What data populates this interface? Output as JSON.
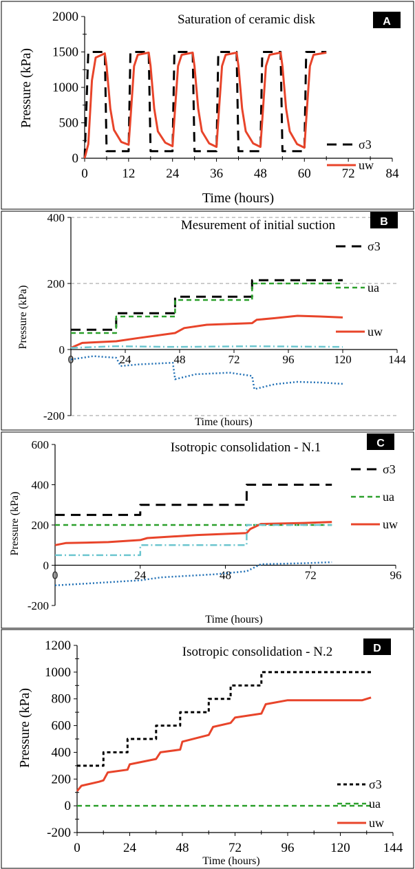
{
  "colors": {
    "sigma3": "#000000",
    "ua": "#2ca02c",
    "uw": "#e8442a",
    "ua_minus_uw": "#6cc6cf",
    "suction": "#1f6fb5",
    "grid": "#9a9a9a",
    "badge_bg": "#000000",
    "badge_text": "#ffffff"
  },
  "chart_data": [
    {
      "type": "line",
      "panel_label": "A",
      "title": "Saturation of ceramic disk",
      "xlabel": "Time (hours)",
      "ylabel": "Pressure (kPa)",
      "xlim": [
        0,
        84
      ],
      "ylim": [
        0,
        2000
      ],
      "xticks": [
        0,
        12,
        24,
        36,
        48,
        60,
        72,
        84
      ],
      "yticks": [
        0,
        500,
        1000,
        1500,
        2000
      ],
      "grid": false,
      "legend_placement": "right",
      "series": [
        {
          "name": "σ3",
          "style": "dashed-black",
          "points": [
            [
              0,
              0
            ],
            [
              1,
              1500
            ],
            [
              5.5,
              1500
            ],
            [
              6,
              100
            ],
            [
              12,
              100
            ],
            [
              12.5,
              1500
            ],
            [
              17.5,
              1500
            ],
            [
              18,
              100
            ],
            [
              24,
              100
            ],
            [
              24.5,
              1500
            ],
            [
              29.5,
              1500
            ],
            [
              30,
              100
            ],
            [
              36,
              100
            ],
            [
              36.5,
              1500
            ],
            [
              41.5,
              1500
            ],
            [
              42,
              100
            ],
            [
              48,
              100
            ],
            [
              48.5,
              1500
            ],
            [
              53.5,
              1500
            ],
            [
              54,
              100
            ],
            [
              60,
              100
            ],
            [
              60.5,
              1500
            ],
            [
              66,
              1500
            ]
          ]
        },
        {
          "name": "uw",
          "style": "solid-red",
          "points": [
            [
              0,
              0
            ],
            [
              1,
              200
            ],
            [
              2,
              1100
            ],
            [
              3,
              1420
            ],
            [
              5.5,
              1480
            ],
            [
              6,
              1300
            ],
            [
              7,
              700
            ],
            [
              8,
              400
            ],
            [
              10,
              230
            ],
            [
              12,
              190
            ],
            [
              12.7,
              700
            ],
            [
              13.5,
              1300
            ],
            [
              14.5,
              1460
            ],
            [
              17.5,
              1490
            ],
            [
              18,
              1300
            ],
            [
              19,
              700
            ],
            [
              20,
              380
            ],
            [
              22,
              220
            ],
            [
              24,
              170
            ],
            [
              24.7,
              700
            ],
            [
              25.5,
              1300
            ],
            [
              26.5,
              1460
            ],
            [
              29.5,
              1490
            ],
            [
              30,
              1300
            ],
            [
              31,
              700
            ],
            [
              32,
              380
            ],
            [
              34,
              210
            ],
            [
              36,
              160
            ],
            [
              36.7,
              700
            ],
            [
              37.5,
              1300
            ],
            [
              38.5,
              1460
            ],
            [
              41.5,
              1490
            ],
            [
              42,
              1300
            ],
            [
              43,
              700
            ],
            [
              44,
              380
            ],
            [
              46,
              210
            ],
            [
              48,
              160
            ],
            [
              48.7,
              700
            ],
            [
              49.5,
              1300
            ],
            [
              50.5,
              1460
            ],
            [
              53.5,
              1490
            ],
            [
              54,
              1300
            ],
            [
              55,
              700
            ],
            [
              56,
              380
            ],
            [
              58,
              200
            ],
            [
              60,
              150
            ],
            [
              60.7,
              700
            ],
            [
              61.5,
              1300
            ],
            [
              62.5,
              1460
            ],
            [
              66,
              1490
            ]
          ]
        }
      ]
    },
    {
      "type": "line",
      "panel_label": "B",
      "title": "Mesurement of initial suction",
      "xlabel": "Time (hours)",
      "ylabel": "Pressure (kPa)",
      "xlim": [
        0,
        144
      ],
      "ylim": [
        -200,
        400
      ],
      "xticks": [
        0,
        24,
        48,
        72,
        96,
        120,
        144
      ],
      "yticks": [
        -200,
        0,
        200,
        400
      ],
      "grid": true,
      "legend_placement": "right",
      "series": [
        {
          "name": "σ3",
          "style": "dashed-black",
          "points": [
            [
              0,
              60
            ],
            [
              20,
              60
            ],
            [
              20,
              110
            ],
            [
              46,
              110
            ],
            [
              46,
              160
            ],
            [
              80,
              160
            ],
            [
              80,
              210
            ],
            [
              120,
              210
            ]
          ]
        },
        {
          "name": "ua",
          "style": "dashed-green",
          "points": [
            [
              0,
              50
            ],
            [
              20,
              50
            ],
            [
              20,
              100
            ],
            [
              46,
              100
            ],
            [
              46,
              150
            ],
            [
              80,
              150
            ],
            [
              80,
              200
            ],
            [
              120,
              200
            ]
          ]
        },
        {
          "name": "uw",
          "style": "solid-red",
          "points": [
            [
              0,
              5
            ],
            [
              5,
              20
            ],
            [
              20,
              25
            ],
            [
              30,
              35
            ],
            [
              46,
              50
            ],
            [
              50,
              65
            ],
            [
              60,
              75
            ],
            [
              80,
              80
            ],
            [
              82,
              90
            ],
            [
              90,
              95
            ],
            [
              100,
              102
            ],
            [
              110,
              100
            ],
            [
              120,
              97
            ]
          ]
        },
        {
          "style": "dashdot-cyan",
          "points": [
            [
              0,
              5
            ],
            [
              20,
              10
            ],
            [
              46,
              8
            ],
            [
              80,
              10
            ],
            [
              120,
              8
            ]
          ]
        },
        {
          "style": "dotted-blue",
          "points": [
            [
              0,
              -30
            ],
            [
              10,
              -20
            ],
            [
              20,
              -25
            ],
            [
              22,
              -50
            ],
            [
              30,
              -45
            ],
            [
              45,
              -40
            ],
            [
              46,
              -90
            ],
            [
              55,
              -75
            ],
            [
              70,
              -70
            ],
            [
              80,
              -80
            ],
            [
              81,
              -120
            ],
            [
              90,
              -105
            ],
            [
              100,
              -98
            ],
            [
              110,
              -100
            ],
            [
              120,
              -104
            ]
          ]
        }
      ]
    },
    {
      "type": "line",
      "panel_label": "C",
      "title": "Isotropic consolidation - N.1",
      "xlabel": "Time (hours)",
      "ylabel": "Pressure (kPa)",
      "xlim": [
        0,
        96
      ],
      "ylim": [
        -200,
        600
      ],
      "xticks": [
        0,
        24,
        48,
        72,
        96
      ],
      "yticks": [
        -200,
        0,
        200,
        400,
        600
      ],
      "grid": false,
      "legend_placement": "right",
      "series": [
        {
          "name": "σ3",
          "style": "dashed-black",
          "points": [
            [
              0,
              250
            ],
            [
              24,
              250
            ],
            [
              24,
              300
            ],
            [
              54,
              300
            ],
            [
              54,
              400
            ],
            [
              78,
              400
            ]
          ]
        },
        {
          "name": "ua",
          "style": "dashed-green",
          "points": [
            [
              0,
              200
            ],
            [
              78,
              200
            ]
          ]
        },
        {
          "name": "uw",
          "style": "solid-red",
          "points": [
            [
              0,
              100
            ],
            [
              3,
              110
            ],
            [
              15,
              115
            ],
            [
              24,
              125
            ],
            [
              26,
              135
            ],
            [
              40,
              150
            ],
            [
              54,
              160
            ],
            [
              55,
              180
            ],
            [
              58,
              205
            ],
            [
              70,
              210
            ],
            [
              78,
              215
            ]
          ]
        },
        {
          "style": "dashdot-cyan",
          "points": [
            [
              0,
              50
            ],
            [
              24,
              50
            ],
            [
              24,
              100
            ],
            [
              54,
              100
            ],
            [
              54,
              200
            ],
            [
              78,
              200
            ]
          ]
        },
        {
          "style": "dotted-blue",
          "points": [
            [
              0,
              -100
            ],
            [
              10,
              -90
            ],
            [
              24,
              -75
            ],
            [
              30,
              -60
            ],
            [
              45,
              -45
            ],
            [
              54,
              -30
            ],
            [
              58,
              5
            ],
            [
              70,
              10
            ],
            [
              78,
              15
            ]
          ]
        }
      ]
    },
    {
      "type": "line",
      "panel_label": "D",
      "title": "Isotropic consolidation - N.2",
      "xlabel": "Time (hours)",
      "ylabel": "Pressure (kPa)",
      "xlim": [
        0,
        144
      ],
      "ylim": [
        -200,
        1200
      ],
      "xticks": [
        0,
        24,
        48,
        72,
        96,
        120,
        144
      ],
      "yticks": [
        -200,
        0,
        200,
        400,
        600,
        800,
        1000,
        1200
      ],
      "grid": false,
      "legend_placement": "right",
      "series": [
        {
          "name": "σ3",
          "style": "dotted-black",
          "points": [
            [
              0,
              300
            ],
            [
              12,
              300
            ],
            [
              12,
              400
            ],
            [
              23,
              400
            ],
            [
              23,
              500
            ],
            [
              36,
              500
            ],
            [
              36,
              600
            ],
            [
              47,
              600
            ],
            [
              47,
              700
            ],
            [
              60,
              700
            ],
            [
              60,
              800
            ],
            [
              70,
              800
            ],
            [
              70,
              900
            ],
            [
              84,
              900
            ],
            [
              84,
              1000
            ],
            [
              134,
              1000
            ]
          ]
        },
        {
          "name": "ua",
          "style": "dashed-green",
          "points": [
            [
              0,
              0
            ],
            [
              134,
              0
            ]
          ]
        },
        {
          "name": "uw",
          "style": "solid-red",
          "points": [
            [
              0,
              110
            ],
            [
              2,
              150
            ],
            [
              10,
              180
            ],
            [
              12,
              190
            ],
            [
              14,
              250
            ],
            [
              23,
              270
            ],
            [
              24,
              310
            ],
            [
              36,
              350
            ],
            [
              38,
              400
            ],
            [
              47,
              420
            ],
            [
              48,
              480
            ],
            [
              60,
              530
            ],
            [
              62,
              590
            ],
            [
              70,
              620
            ],
            [
              72,
              660
            ],
            [
              84,
              690
            ],
            [
              86,
              760
            ],
            [
              96,
              790
            ],
            [
              120,
              790
            ],
            [
              130,
              790
            ],
            [
              134,
              810
            ]
          ]
        }
      ]
    }
  ]
}
